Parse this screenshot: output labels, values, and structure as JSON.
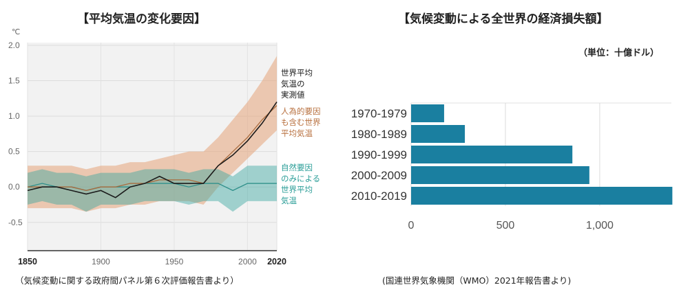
{
  "left_title": "【平均気温の変化要因】",
  "right_title": "【気候変動による全世界の経済損失額】",
  "left_source": "（気候変動に関する政府間パネル第６次評価報告書より）",
  "right_source": "(国連世界気象機関（WMO）2021年報告書より)",
  "colors": {
    "observed": "#1a1a1a",
    "human": "#e6a47a",
    "natural": "#3aa6a0",
    "bar": "#1a7fa0"
  },
  "chart_data": [
    {
      "type": "line",
      "title": "【平均気温の変化要因】",
      "unit_label": "℃",
      "ylim": [
        -0.9,
        2.0
      ],
      "xlim": [
        1850,
        2020
      ],
      "y_ticks": [
        "2.0",
        "1.5",
        "1.0",
        "0.5",
        "0.0",
        "-0.5"
      ],
      "x_ticks": [
        "1850",
        "1900",
        "1950",
        "2000",
        "2020"
      ],
      "grid": true,
      "series": [
        {
          "name": "世界平均\n気温の\n実測値",
          "x": [
            1850,
            1860,
            1870,
            1880,
            1890,
            1900,
            1910,
            1920,
            1930,
            1940,
            1950,
            1960,
            1970,
            1980,
            1990,
            2000,
            2010,
            2020
          ],
          "values": [
            -0.05,
            0.0,
            0.0,
            -0.05,
            -0.1,
            -0.05,
            -0.15,
            0.0,
            0.05,
            0.15,
            0.05,
            0.05,
            0.05,
            0.3,
            0.45,
            0.65,
            0.9,
            1.2
          ]
        },
        {
          "name": "人為的要因\nも含む世界\n平均気温",
          "x": [
            1850,
            1860,
            1870,
            1880,
            1890,
            1900,
            1910,
            1920,
            1930,
            1940,
            1950,
            1960,
            1970,
            1980,
            1990,
            2000,
            2010,
            2020
          ],
          "values": [
            0.0,
            0.0,
            0.0,
            0.0,
            -0.05,
            0.0,
            0.0,
            0.05,
            0.05,
            0.1,
            0.1,
            0.1,
            0.05,
            0.3,
            0.5,
            0.7,
            0.95,
            1.15
          ],
          "lower": [
            -0.3,
            -0.3,
            -0.3,
            -0.3,
            -0.35,
            -0.3,
            -0.3,
            -0.25,
            -0.25,
            -0.2,
            -0.2,
            -0.2,
            -0.25,
            0.0,
            0.2,
            0.4,
            0.6,
            0.8
          ],
          "upper": [
            0.3,
            0.3,
            0.3,
            0.3,
            0.25,
            0.3,
            0.3,
            0.35,
            0.35,
            0.4,
            0.45,
            0.5,
            0.5,
            0.7,
            0.95,
            1.2,
            1.5,
            1.85
          ]
        },
        {
          "name": "自然要因\nのみによる\n世界平均\n気温",
          "x": [
            1850,
            1860,
            1870,
            1880,
            1890,
            1900,
            1910,
            1920,
            1930,
            1940,
            1950,
            1960,
            1970,
            1980,
            1990,
            2000,
            2010,
            2020
          ],
          "values": [
            0.0,
            0.05,
            0.0,
            0.0,
            -0.05,
            0.0,
            0.0,
            0.0,
            0.05,
            0.05,
            0.05,
            0.0,
            0.05,
            0.05,
            -0.05,
            0.05,
            0.05,
            0.05
          ],
          "lower": [
            -0.25,
            -0.2,
            -0.25,
            -0.25,
            -0.35,
            -0.25,
            -0.25,
            -0.25,
            -0.2,
            -0.2,
            -0.2,
            -0.25,
            -0.2,
            -0.2,
            -0.35,
            -0.2,
            -0.2,
            -0.2
          ],
          "upper": [
            0.2,
            0.25,
            0.2,
            0.2,
            0.15,
            0.2,
            0.2,
            0.2,
            0.25,
            0.25,
            0.25,
            0.2,
            0.25,
            0.25,
            0.15,
            0.3,
            0.3,
            0.3
          ]
        }
      ]
    },
    {
      "type": "bar",
      "orientation": "horizontal",
      "title": "【気候変動による全世界の経済損失額】",
      "unit_label": "（単位：十億ドル）",
      "categories": [
        "1970-1979",
        "1980-1989",
        "1990-1999",
        "2000-2009",
        "2010-2019"
      ],
      "values": [
        175,
        285,
        855,
        945,
        1385
      ],
      "x_ticks": [
        "0",
        "500",
        "1,000"
      ],
      "xlim": [
        0,
        1380
      ],
      "grid": true
    }
  ]
}
